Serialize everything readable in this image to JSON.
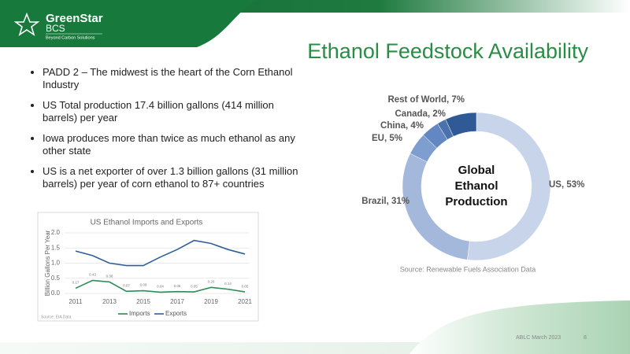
{
  "header": {
    "logo_name": "GreenStar",
    "logo_sub": "BCS",
    "logo_tagline": "Beyond Carbon Solutions",
    "title": "Ethanol Feedstock Availability"
  },
  "bullets": [
    "PADD 2 – The midwest is the heart of the Corn Ethanol Industry",
    "US Total production 17.4 billion gallons (414 million barrels) per year",
    "Iowa produces more than twice as much ethanol as any other state",
    "US is a net exporter of over 1.3 billion gallons (31 million barrels) per year of corn ethanol to 87+ countries"
  ],
  "chart_data": [
    {
      "type": "pie",
      "center_label_lines": [
        "Global",
        "Ethanol",
        "Production"
      ],
      "values": [
        53,
        31,
        5,
        4,
        2,
        7
      ],
      "value_labels": [
        "US, 53%",
        "Brazil, 31%",
        "EU, 5%",
        "China, 4%",
        "Canada, 2%",
        "Rest of World, 7%"
      ],
      "colors": [
        "#c7d4e9",
        "#a3b8db",
        "#7f9ed0",
        "#6287c2",
        "#4c72ae",
        "#305a96"
      ],
      "source": "Source: Renewable Fuels Association Data"
    },
    {
      "type": "line",
      "title": "US Ethanol Imports and Exports",
      "y_label": "Billion Gallons Per Year",
      "x": [
        2011,
        2012,
        2013,
        2014,
        2015,
        2016,
        2017,
        2018,
        2019,
        2020,
        2021
      ],
      "xlim": [
        2011,
        2021
      ],
      "xticks": [
        2011,
        2013,
        2015,
        2017,
        2019,
        2021
      ],
      "ylim": [
        0,
        2
      ],
      "yticks": [
        {
          "value": 0,
          "label": "0.0"
        },
        {
          "value": 0.5,
          "label": "0.5"
        },
        {
          "value": 1,
          "label": "1.0"
        },
        {
          "value": 1.5,
          "label": "1.5"
        },
        {
          "value": 2,
          "label": "2.0"
        }
      ],
      "grid": true,
      "series": [
        {
          "name": "Imports",
          "color": "#2e8b57",
          "values": [
            0.17,
            0.43,
            0.38,
            0.07,
            0.09,
            0.04,
            0.06,
            0.05,
            0.2,
            0.14,
            0.05
          ],
          "value_labels": [
            "0.17",
            "0.43",
            "0.38",
            "0.07",
            "0.09",
            "0.04",
            "0.06",
            "0.05",
            "0.20",
            "0.14",
            "0.05"
          ]
        },
        {
          "name": "Exports",
          "color": "#2f5f9a",
          "values": [
            1.4,
            1.25,
            1.0,
            0.92,
            0.92,
            1.2,
            1.45,
            1.75,
            1.65,
            1.45,
            1.3
          ]
        }
      ],
      "source": "Source: EIA Data"
    }
  ],
  "footer": {
    "event": "ABLC March 2023",
    "page": 8
  }
}
